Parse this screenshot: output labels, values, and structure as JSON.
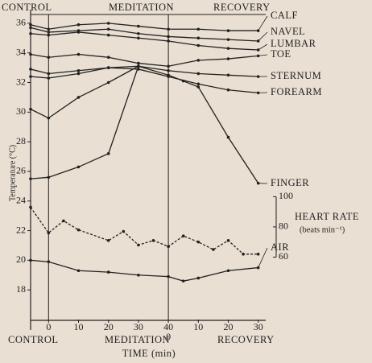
{
  "chart_data": {
    "type": "line",
    "period_labels": [
      "CONTROL",
      "MEDITATION",
      "RECOVERY"
    ],
    "xlabel": "TIME (min)",
    "ylabel": "Temperature (°C)",
    "xlim": [
      -6,
      72.5
    ],
    "xticks": [
      0,
      10,
      20,
      30,
      40,
      {
        "value": 50,
        "label": "10"
      },
      {
        "value": 60,
        "label": "20"
      },
      {
        "value": 70,
        "label": "30"
      }
    ],
    "x_secondary_labels": [
      {
        "value": 40,
        "label": "0"
      }
    ],
    "period_boundaries": [
      0,
      40
    ],
    "ylim": [
      16,
      36.7
    ],
    "yticks": [
      18,
      20,
      22,
      24,
      26,
      28,
      30,
      32,
      34,
      36
    ],
    "y2lim": [
      18.7,
      221.6
    ],
    "y2ticks": [
      60,
      80,
      100
    ],
    "y2label": "HEART RATE",
    "y2unit": "(beats min⁻¹)",
    "series": [
      {
        "name": "CALF",
        "color": "#222",
        "x": [
          -6,
          0,
          10,
          20,
          30,
          40,
          50,
          60,
          70
        ],
        "values": [
          35.9,
          35.6,
          35.9,
          36,
          35.8,
          35.6,
          35.6,
          35.5,
          35.5
        ]
      },
      {
        "name": "NAVEL",
        "color": "#222",
        "x": [
          -6,
          0,
          10,
          20,
          30,
          40,
          50,
          60,
          70
        ],
        "values": [
          35.7,
          35.4,
          35.5,
          35.6,
          35.3,
          35.1,
          35.0,
          34.9,
          34.8
        ]
      },
      {
        "name": "LUMBAR",
        "color": "#222",
        "x": [
          -6,
          0,
          10,
          20,
          30,
          40,
          50,
          60,
          70
        ],
        "values": [
          35.3,
          35.2,
          35.4,
          35.2,
          35.0,
          34.8,
          34.5,
          34.3,
          34.2
        ]
      },
      {
        "name": "TOE",
        "color": "#222",
        "x": [
          -6,
          0,
          10,
          20,
          30,
          40,
          50,
          60,
          70
        ],
        "values": [
          33.9,
          33.7,
          33.9,
          33.7,
          33.3,
          33.1,
          33.5,
          33.6,
          33.8
        ]
      },
      {
        "name": "STERNUM",
        "color": "#222",
        "x": [
          -6,
          0,
          10,
          20,
          30,
          40,
          50,
          60,
          70
        ],
        "values": [
          32.9,
          32.6,
          32.8,
          33.0,
          33.1,
          32.8,
          32.6,
          32.5,
          32.4
        ]
      },
      {
        "name": "FOREARM",
        "color": "#222",
        "x": [
          -6,
          0,
          10,
          20,
          30,
          40,
          50,
          60,
          70
        ],
        "values": [
          32.4,
          32.3,
          32.6,
          33.0,
          32.9,
          32.4,
          31.9,
          31.5,
          31.3
        ]
      },
      {
        "name": "FINGER",
        "color": "#222",
        "x": [
          -6,
          0,
          10,
          20,
          30,
          40,
          45,
          50,
          60,
          70
        ],
        "values": [
          30.2,
          29.6,
          31.0,
          32.0,
          33.1,
          32.5,
          32.1,
          31.7,
          28.3,
          25.2
        ]
      },
      {
        "color": "#222",
        "x": [
          -6,
          0,
          10,
          20,
          30
        ],
        "values": [
          25.5,
          25.6,
          26.3,
          27.2,
          33.1
        ]
      },
      {
        "name": "AIR",
        "color": "#222",
        "x": [
          -6,
          0,
          10,
          20,
          30,
          40,
          45,
          50,
          60,
          70
        ],
        "values": [
          20.0,
          19.9,
          19.3,
          19.2,
          19.0,
          18.9,
          18.6,
          18.8,
          19.3,
          19.5
        ]
      },
      {
        "axis": "y2",
        "dashed": true,
        "color": "#222",
        "x": [
          -6,
          0,
          5,
          10,
          20,
          25,
          30,
          35,
          40,
          45,
          50,
          55,
          60,
          65,
          70
        ],
        "values": [
          93,
          76,
          84,
          78,
          71,
          77,
          68,
          71,
          67,
          74,
          70,
          65,
          71,
          62,
          62
        ]
      }
    ]
  }
}
